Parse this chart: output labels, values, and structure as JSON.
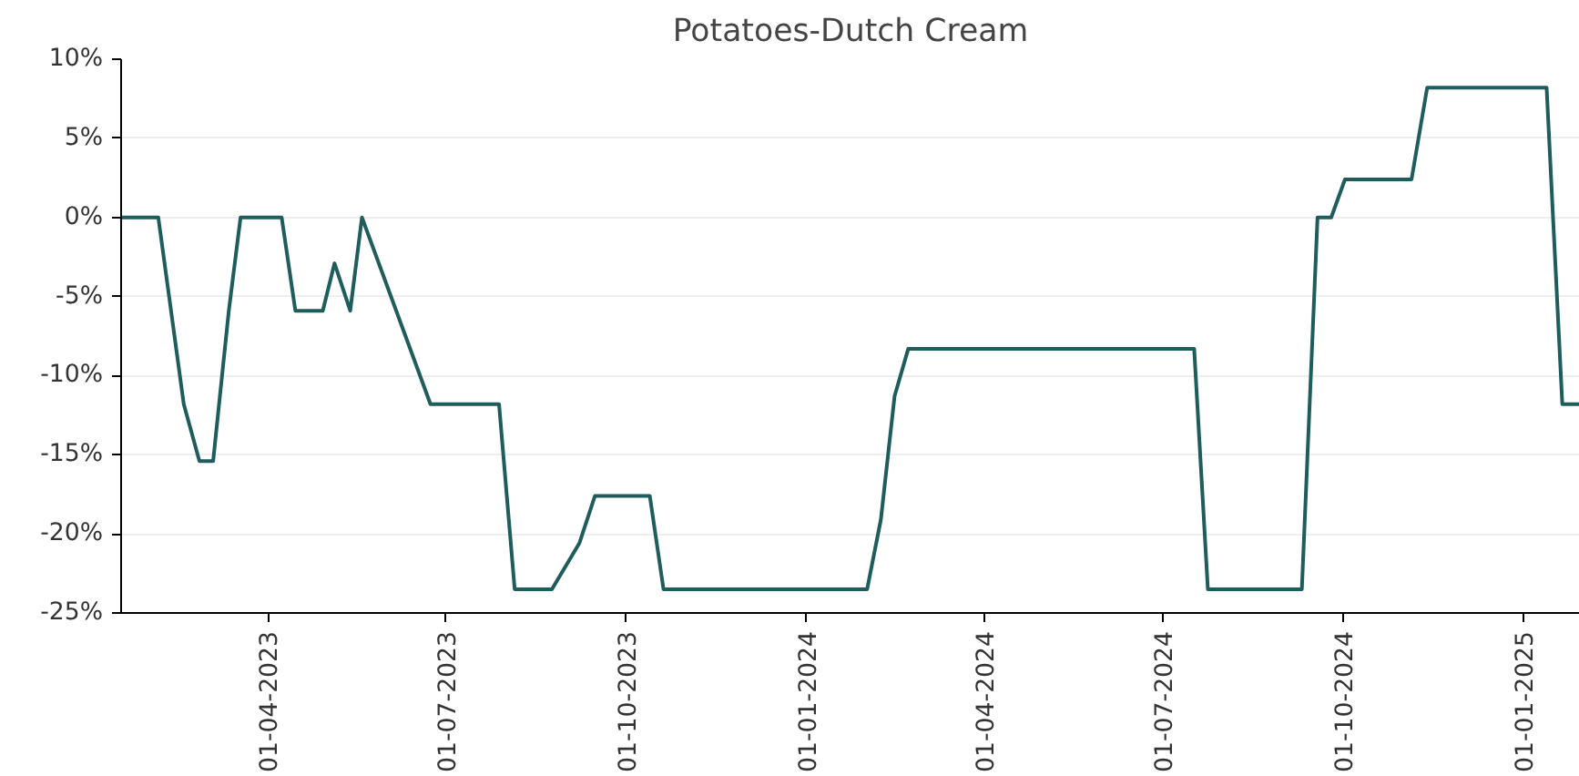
{
  "chart_data": {
    "type": "line",
    "title": "Potatoes-Dutch Cream",
    "x": [
      "2023-01-16",
      "2023-02-04",
      "2023-02-17",
      "2023-02-25",
      "2023-03-04",
      "2023-03-12",
      "2023-03-18",
      "2023-04-08",
      "2023-04-15",
      "2023-04-29",
      "2023-05-05",
      "2023-05-13",
      "2023-05-19",
      "2023-06-23",
      "2023-07-28",
      "2023-08-05",
      "2023-08-24",
      "2023-09-07",
      "2023-09-15",
      "2023-10-13",
      "2023-10-20",
      "2024-02-01",
      "2024-02-08",
      "2024-02-15",
      "2024-02-22",
      "2024-07-17",
      "2024-07-24",
      "2024-09-10",
      "2024-09-18",
      "2024-09-25",
      "2024-10-02",
      "2024-11-05",
      "2024-11-13",
      "2025-01-13",
      "2025-01-21",
      "2025-01-30"
    ],
    "series": [
      {
        "color": "#1f5c5c",
        "values": [
          0,
          0,
          -11.8,
          -15.4,
          -15.4,
          -5.9,
          0,
          0,
          -5.9,
          -5.9,
          -2.9,
          -5.9,
          0,
          -11.8,
          -11.8,
          -23.5,
          -23.5,
          -20.6,
          -17.6,
          -17.6,
          -23.5,
          -23.5,
          -19.1,
          -11.3,
          -8.3,
          -8.3,
          -23.5,
          -23.5,
          0,
          0,
          2.4,
          2.4,
          8.2,
          8.2,
          -11.8,
          -11.8
        ]
      }
    ],
    "xlim": [
      "2023-01-16",
      "2025-01-30"
    ],
    "xticks": [
      {
        "value": "2023-04-01",
        "label": "01-04-2023"
      },
      {
        "value": "2023-07-01",
        "label": "01-07-2023"
      },
      {
        "value": "2023-10-01",
        "label": "01-10-2023"
      },
      {
        "value": "2024-01-01",
        "label": "01-01-2024"
      },
      {
        "value": "2024-04-01",
        "label": "01-04-2024"
      },
      {
        "value": "2024-07-01",
        "label": "01-07-2024"
      },
      {
        "value": "2024-10-01",
        "label": "01-10-2024"
      },
      {
        "value": "2025-01-01",
        "label": "01-01-2025"
      }
    ],
    "ylim": [
      -25,
      10
    ],
    "yticks": [
      {
        "value": -25,
        "label": "-25%"
      },
      {
        "value": -20,
        "label": "-20%"
      },
      {
        "value": -15,
        "label": "-15%"
      },
      {
        "value": -10,
        "label": "-10%"
      },
      {
        "value": -5,
        "label": "-5%"
      },
      {
        "value": 0,
        "label": "0%"
      },
      {
        "value": 5,
        "label": "5%"
      },
      {
        "value": 10,
        "label": "10%"
      }
    ],
    "grid": "y",
    "line_style": "solid",
    "marker": "none"
  }
}
